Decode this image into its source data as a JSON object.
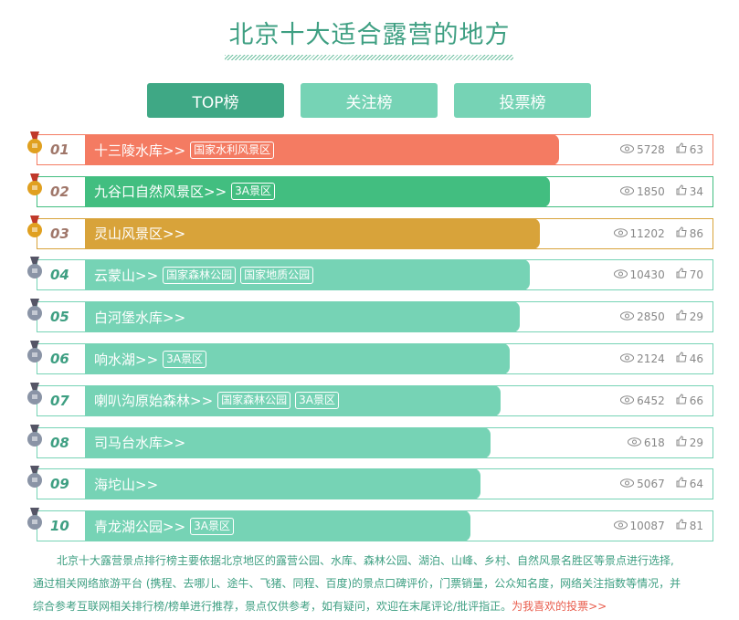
{
  "title": "北京十大适合露营的地方",
  "tabs": [
    {
      "label": "TOP榜",
      "active": true
    },
    {
      "label": "关注榜"
    },
    {
      "label": "投票榜"
    }
  ],
  "colors": {
    "rank1": "#f47b62",
    "rank2": "#42be80",
    "rank3": "#d8a33a",
    "default": "#76d3b5"
  },
  "items": [
    {
      "rank": "01",
      "name": "十三陵水库>>",
      "tags": [
        "国家水利风景区"
      ],
      "views": "5728",
      "likes": "63"
    },
    {
      "rank": "02",
      "name": "九谷口自然风景区>>",
      "tags": [
        "3A景区"
      ],
      "views": "1850",
      "likes": "34"
    },
    {
      "rank": "03",
      "name": "灵山风景区>>",
      "tags": [],
      "views": "11202",
      "likes": "86"
    },
    {
      "rank": "04",
      "name": "云蒙山>>",
      "tags": [
        "国家森林公园",
        "国家地质公园"
      ],
      "views": "10430",
      "likes": "70"
    },
    {
      "rank": "05",
      "name": "白河堡水库>>",
      "tags": [],
      "views": "2850",
      "likes": "29"
    },
    {
      "rank": "06",
      "name": "响水湖>>",
      "tags": [
        "3A景区"
      ],
      "views": "2124",
      "likes": "46"
    },
    {
      "rank": "07",
      "name": "喇叭沟原始森林>>",
      "tags": [
        "国家森林公园",
        "3A景区"
      ],
      "views": "6452",
      "likes": "66"
    },
    {
      "rank": "08",
      "name": "司马台水库>>",
      "tags": [],
      "views": "618",
      "likes": "29"
    },
    {
      "rank": "09",
      "name": "海坨山>>",
      "tags": [],
      "views": "5067",
      "likes": "64"
    },
    {
      "rank": "10",
      "name": "青龙湖公园>>",
      "tags": [
        "3A景区"
      ],
      "views": "10087",
      "likes": "81"
    }
  ],
  "description": {
    "line1": "北京十大露营景点排行榜主要依据北京地区的露营公园、水库、森林公园、湖泊、山峰、乡村、自然风景名胜区等景点进行选择,",
    "line2": "通过相关网络旅游平台 (携程、去哪儿、途牛、飞猪、同程、百度)的景点口碑评价，门票销量，公众知名度，网络关注指数等情况，并",
    "line3": "综合参考互联网相关排行榜/榜单进行推荐，景点仅供参考，如有疑问，欢迎在末尾评论/批评指正。",
    "vote_link": "为我喜欢的投票>>"
  }
}
